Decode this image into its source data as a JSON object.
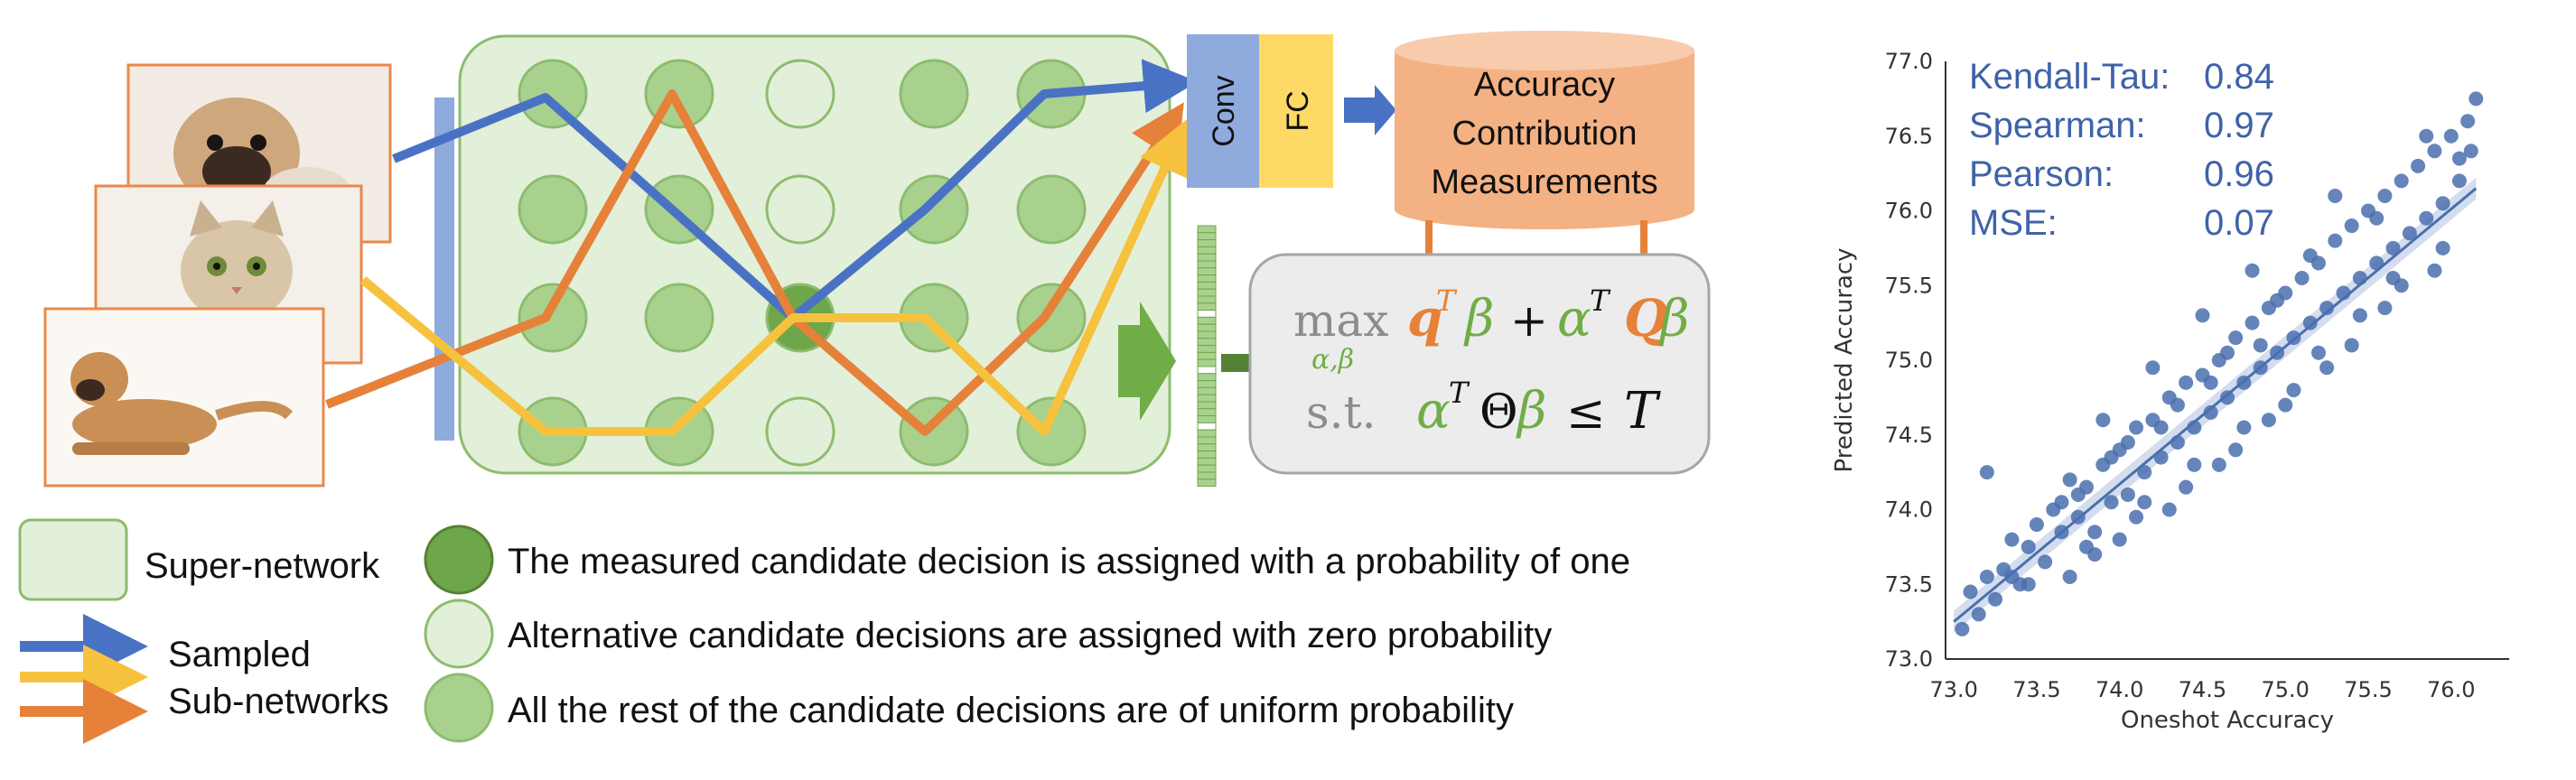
{
  "network": {
    "conv_label": "Conv",
    "fc_label": "FC",
    "measure_label": [
      "Accuracy",
      "Contribution",
      "Measurements"
    ]
  },
  "equation": {
    "max": "max",
    "sub": "α,β",
    "term1_q": "q",
    "term1_beta": "β",
    "plus": "+",
    "alpha": "α",
    "Q": "Q",
    "beta": "β",
    "st": "s.t.",
    "theta": "Θ",
    "leq": "≤",
    "T": "T",
    "sup_T": "T"
  },
  "legend": {
    "supernetwork": "Super-network",
    "measured": "The measured candidate decision is assigned with a probability of one",
    "alternative": "Alternative candidate decisions are assigned with zero probability",
    "rest": "All the rest of the candidate decisions are of uniform probability",
    "sampled": "Sampled",
    "subnetworks": "Sub-networks"
  },
  "colors": {
    "blue": "#4a72c4",
    "orange": "#e6813a",
    "yellow": "#f6c23e",
    "green_dark": "#6ea64a",
    "green_mid": "#a9d18e",
    "green_light": "#e2efd9",
    "scatter": "#4a6fae"
  },
  "chart_data": {
    "type": "scatter",
    "xlabel": "Oneshot Accuracy",
    "ylabel": "Predicted Accuracy",
    "xlim": [
      72.95,
      76.35
    ],
    "ylim": [
      73.0,
      77.0
    ],
    "xticks": [
      "73.0",
      "73.5",
      "74.0",
      "74.5",
      "75.0",
      "75.5",
      "76.0"
    ],
    "yticks": [
      "73.0",
      "73.5",
      "74.0",
      "74.5",
      "75.0",
      "75.5",
      "76.0",
      "76.5",
      "77.0"
    ],
    "stats": [
      {
        "name": "Kendall-Tau:",
        "value": "0.84"
      },
      {
        "name": "Spearman:",
        "value": "0.97"
      },
      {
        "name": "Pearson:",
        "value": "0.96"
      },
      {
        "name": "MSE:",
        "value": "0.07"
      }
    ],
    "trend_line": {
      "x": [
        73.0,
        76.15
      ],
      "y": [
        73.25,
        76.15
      ]
    },
    "points": [
      [
        73.05,
        73.2
      ],
      [
        73.1,
        73.45
      ],
      [
        73.15,
        73.3
      ],
      [
        73.2,
        73.55
      ],
      [
        73.25,
        73.4
      ],
      [
        73.2,
        74.25
      ],
      [
        73.3,
        73.6
      ],
      [
        73.35,
        73.8
      ],
      [
        73.4,
        73.5
      ],
      [
        73.45,
        73.75
      ],
      [
        73.5,
        73.9
      ],
      [
        73.55,
        73.65
      ],
      [
        73.6,
        74.0
      ],
      [
        73.65,
        73.85
      ],
      [
        73.7,
        74.2
      ],
      [
        73.75,
        73.95
      ],
      [
        73.8,
        74.15
      ],
      [
        73.85,
        73.7
      ],
      [
        73.9,
        74.3
      ],
      [
        73.95,
        74.05
      ],
      [
        74.0,
        74.4
      ],
      [
        74.05,
        74.1
      ],
      [
        74.1,
        74.55
      ],
      [
        74.15,
        74.25
      ],
      [
        74.2,
        74.6
      ],
      [
        74.25,
        74.35
      ],
      [
        74.3,
        74.75
      ],
      [
        74.35,
        74.45
      ],
      [
        74.4,
        74.85
      ],
      [
        74.45,
        74.55
      ],
      [
        74.5,
        74.9
      ],
      [
        74.55,
        74.65
      ],
      [
        74.6,
        75.0
      ],
      [
        74.65,
        74.75
      ],
      [
        74.7,
        75.15
      ],
      [
        74.75,
        74.85
      ],
      [
        74.8,
        75.25
      ],
      [
        74.85,
        74.95
      ],
      [
        74.9,
        75.35
      ],
      [
        74.95,
        75.05
      ],
      [
        75.0,
        75.45
      ],
      [
        75.05,
        75.15
      ],
      [
        75.1,
        75.55
      ],
      [
        75.15,
        75.25
      ],
      [
        75.2,
        75.65
      ],
      [
        75.25,
        75.35
      ],
      [
        75.3,
        75.8
      ],
      [
        75.35,
        75.45
      ],
      [
        75.4,
        75.9
      ],
      [
        75.45,
        75.55
      ],
      [
        75.5,
        76.0
      ],
      [
        75.55,
        75.65
      ],
      [
        75.6,
        76.1
      ],
      [
        75.65,
        75.75
      ],
      [
        75.7,
        76.2
      ],
      [
        75.75,
        75.85
      ],
      [
        75.8,
        76.3
      ],
      [
        75.85,
        75.95
      ],
      [
        75.9,
        76.4
      ],
      [
        75.95,
        76.05
      ],
      [
        76.0,
        76.5
      ],
      [
        76.05,
        76.2
      ],
      [
        76.1,
        76.6
      ],
      [
        76.15,
        76.75
      ],
      [
        76.12,
        76.4
      ],
      [
        75.85,
        76.5
      ],
      [
        75.9,
        75.6
      ],
      [
        75.6,
        75.35
      ],
      [
        75.2,
        75.05
      ],
      [
        74.9,
        74.6
      ],
      [
        74.6,
        74.3
      ],
      [
        74.3,
        74.0
      ],
      [
        74.0,
        73.8
      ],
      [
        73.7,
        73.55
      ],
      [
        73.45,
        73.5
      ],
      [
        74.8,
        75.6
      ],
      [
        75.3,
        76.1
      ],
      [
        74.5,
        75.3
      ],
      [
        74.2,
        74.95
      ],
      [
        73.9,
        74.6
      ],
      [
        75.4,
        75.1
      ],
      [
        75.0,
        74.7
      ],
      [
        74.7,
        74.4
      ],
      [
        74.4,
        74.15
      ],
      [
        74.1,
        73.95
      ],
      [
        73.8,
        73.75
      ],
      [
        75.7,
        75.5
      ],
      [
        75.95,
        75.75
      ],
      [
        76.05,
        76.35
      ],
      [
        75.55,
        75.95
      ],
      [
        74.85,
        75.1
      ],
      [
        74.55,
        74.85
      ],
      [
        74.25,
        74.55
      ],
      [
        73.95,
        74.35
      ],
      [
        73.65,
        74.05
      ],
      [
        73.35,
        73.55
      ],
      [
        75.15,
        75.7
      ],
      [
        74.95,
        75.4
      ],
      [
        74.65,
        75.05
      ],
      [
        74.35,
        74.7
      ],
      [
        74.05,
        74.45
      ],
      [
        73.75,
        74.1
      ],
      [
        75.25,
        74.95
      ],
      [
        75.05,
        74.8
      ],
      [
        74.75,
        74.55
      ],
      [
        74.45,
        74.3
      ],
      [
        74.15,
        74.05
      ],
      [
        73.85,
        73.85
      ],
      [
        75.45,
        75.3
      ],
      [
        75.65,
        75.55
      ]
    ]
  }
}
